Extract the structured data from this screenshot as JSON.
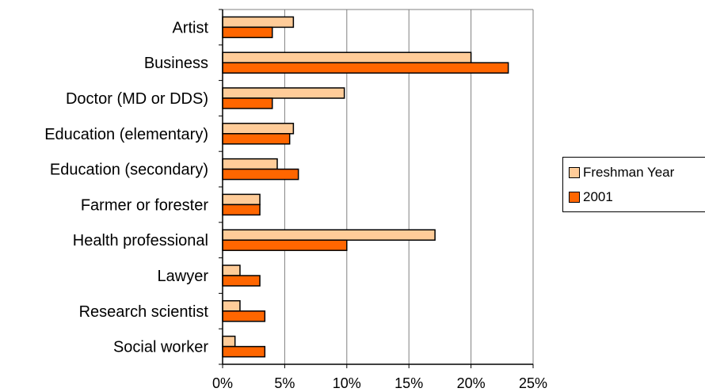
{
  "chart_data": {
    "type": "bar",
    "orientation": "horizontal",
    "categories": [
      "Artist",
      "Business",
      "Doctor (MD or DDS)",
      "Education (elementary)",
      "Education (secondary)",
      "Farmer or forester",
      "Health professional",
      "Lawyer",
      "Research scientist",
      "Social worker"
    ],
    "series": [
      {
        "name": "Freshman Year",
        "color": "#FFCC99",
        "values": [
          5.7,
          20.0,
          9.8,
          5.7,
          4.4,
          3.0,
          17.1,
          1.4,
          1.4,
          1.0
        ]
      },
      {
        "name": "2001",
        "color": "#FF6600",
        "values": [
          4.0,
          23.0,
          4.0,
          5.4,
          6.1,
          3.0,
          10.0,
          3.0,
          3.4,
          3.4
        ]
      }
    ],
    "xlim": [
      0,
      25
    ],
    "xticks": [
      0,
      5,
      10,
      15,
      20,
      25
    ],
    "xtick_labels": [
      "0%",
      "5%",
      "10%",
      "15%",
      "20%",
      "25%"
    ],
    "grid": "vertical major gridlines",
    "legend_position": "right"
  }
}
